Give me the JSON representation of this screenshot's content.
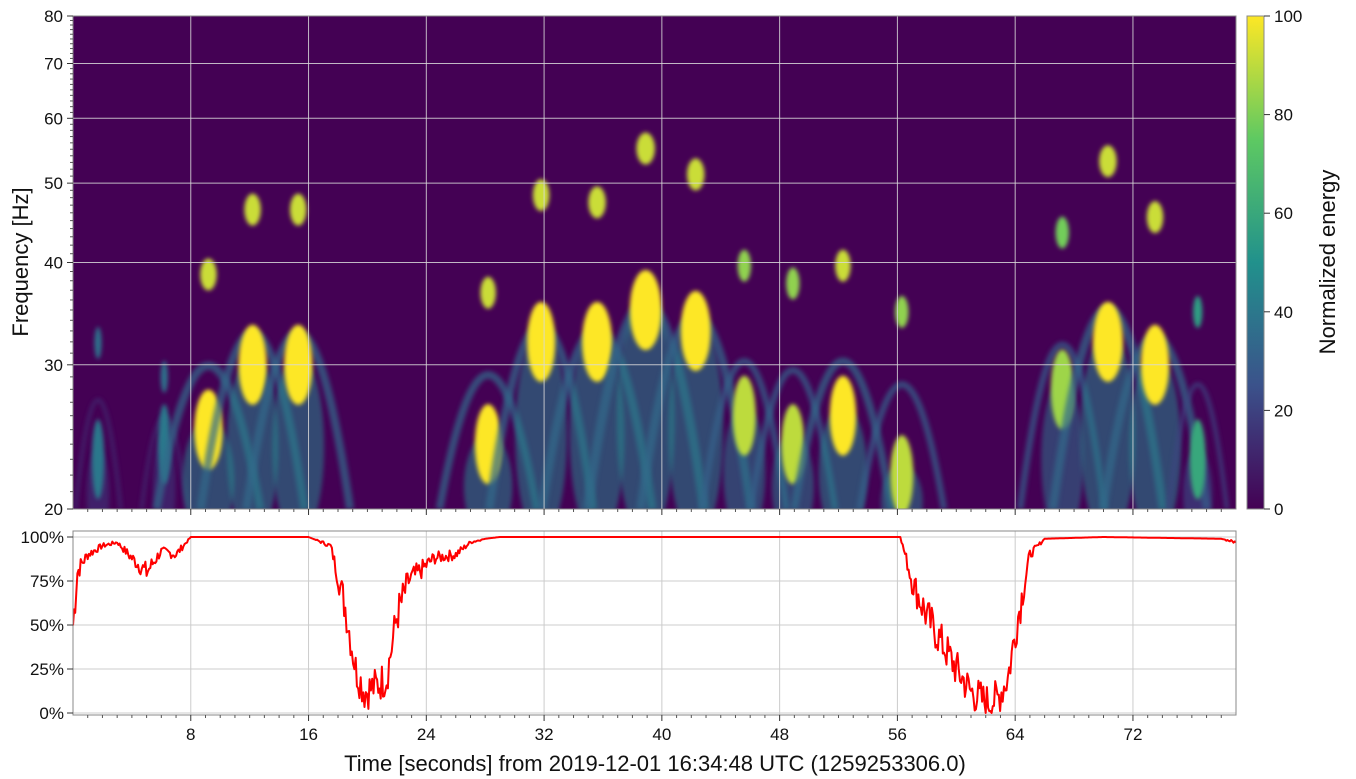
{
  "chart_data": [
    {
      "type": "heatmap",
      "name": "spectrogram",
      "xlim": [
        0,
        79
      ],
      "ylim": [
        20,
        80
      ],
      "yscale": "log",
      "ylabel": "Frequency [Hz]",
      "yticks": [
        20,
        30,
        40,
        50,
        60,
        70,
        80
      ],
      "xticks": [
        8,
        16,
        24,
        32,
        40,
        48,
        56,
        64,
        72
      ],
      "grid": true,
      "colorbar": {
        "label": "Normalized energy",
        "range": [
          0,
          100
        ],
        "ticks": [
          0,
          20,
          40,
          60,
          80,
          100
        ],
        "colormap": "viridis",
        "colors": [
          "#440154",
          "#3b528b",
          "#21918c",
          "#5ec962",
          "#fde725"
        ]
      },
      "background_color": "#440154",
      "features": [
        {
          "t": 1.7,
          "f": 23,
          "peak_f": 33,
          "w": 0.7,
          "level": 40
        },
        {
          "t": 6.2,
          "f": 24,
          "peak_f": 30,
          "w": 0.7,
          "level": 40
        },
        {
          "t": 9.2,
          "f": 25,
          "peak_f": 40,
          "w": 1.6,
          "level": 100
        },
        {
          "t": 12.2,
          "f": 30,
          "peak_f": 48,
          "w": 1.6,
          "level": 100
        },
        {
          "t": 15.3,
          "f": 30,
          "peak_f": 48,
          "w": 1.6,
          "level": 100
        },
        {
          "t": 28.2,
          "f": 24,
          "peak_f": 38,
          "w": 1.5,
          "level": 100
        },
        {
          "t": 31.8,
          "f": 32,
          "peak_f": 50,
          "w": 1.6,
          "level": 100
        },
        {
          "t": 35.6,
          "f": 32,
          "peak_f": 49,
          "w": 1.7,
          "level": 100
        },
        {
          "t": 38.9,
          "f": 35,
          "peak_f": 57,
          "w": 1.8,
          "level": 100
        },
        {
          "t": 42.3,
          "f": 33,
          "peak_f": 53,
          "w": 1.7,
          "level": 100
        },
        {
          "t": 45.6,
          "f": 26,
          "peak_f": 41,
          "w": 1.3,
          "level": 90
        },
        {
          "t": 48.9,
          "f": 24,
          "peak_f": 39,
          "w": 1.3,
          "level": 90
        },
        {
          "t": 52.3,
          "f": 26,
          "peak_f": 41,
          "w": 1.5,
          "level": 100
        },
        {
          "t": 56.3,
          "f": 22,
          "peak_f": 36,
          "w": 1.3,
          "level": 90
        },
        {
          "t": 67.2,
          "f": 28,
          "peak_f": 45,
          "w": 1.3,
          "level": 85
        },
        {
          "t": 70.3,
          "f": 32,
          "peak_f": 55,
          "w": 1.7,
          "level": 100
        },
        {
          "t": 73.5,
          "f": 30,
          "peak_f": 47,
          "w": 1.6,
          "level": 100
        },
        {
          "t": 76.4,
          "f": 23,
          "peak_f": 36,
          "w": 0.9,
          "level": 60
        }
      ]
    },
    {
      "type": "line",
      "name": "percentage-timeseries",
      "xlabel": "Time [seconds] from 2019-12-01 16:34:48 UTC (1259253306.0)",
      "xlim": [
        0,
        79
      ],
      "ylim": [
        0,
        100
      ],
      "yticks": [
        "0%",
        "25%",
        "50%",
        "75%",
        "100%"
      ],
      "xticks": [
        8,
        16,
        24,
        32,
        40,
        48,
        56,
        64,
        72
      ],
      "grid": true,
      "color": "#ff0000",
      "x": [
        0,
        0.3,
        0.6,
        1,
        2,
        3,
        4,
        5,
        6,
        7,
        8,
        10,
        16,
        17.5,
        18.5,
        19.2,
        19.8,
        20.5,
        21.3,
        22,
        22.8,
        23.5,
        24.5,
        26,
        27,
        28,
        29,
        30,
        40,
        50,
        55.5,
        56.2,
        57,
        58,
        59,
        60,
        61,
        62,
        62.8,
        63.5,
        64.2,
        65,
        66,
        70,
        78,
        79
      ],
      "y": [
        50,
        80,
        85,
        90,
        95,
        97,
        88,
        80,
        92,
        90,
        100,
        100,
        100,
        95,
        60,
        25,
        12,
        15,
        20,
        55,
        75,
        80,
        88,
        90,
        97,
        99,
        100,
        100,
        100,
        100,
        100,
        100,
        75,
        55,
        40,
        25,
        12,
        6,
        8,
        20,
        55,
        90,
        99,
        100,
        99,
        97
      ]
    }
  ]
}
